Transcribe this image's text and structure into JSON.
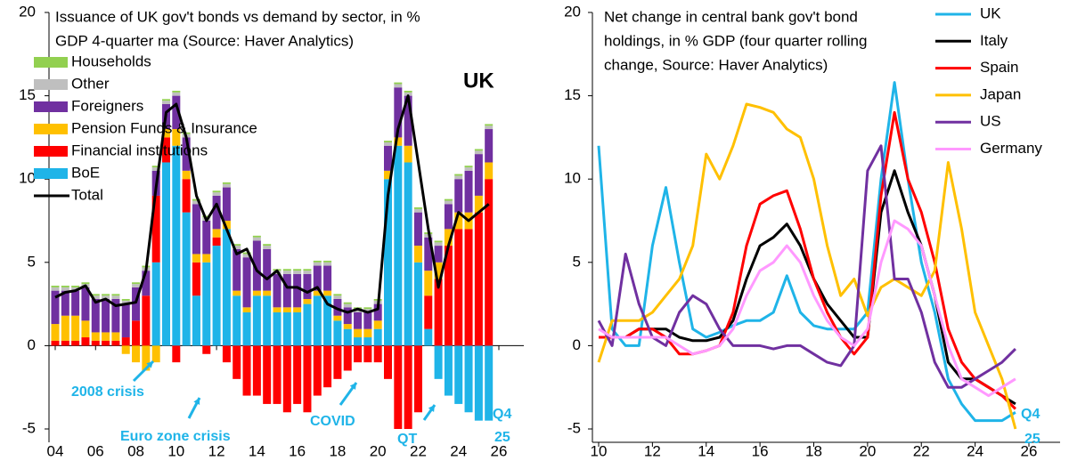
{
  "chart_data": [
    {
      "type": "bar",
      "stacked": true,
      "title": [
        "Issuance of UK gov't bonds vs demand by sector, in %",
        "GDP 4-quarter ma (Source: Haver Analytics)"
      ],
      "x": [
        2004,
        2004.5,
        2005,
        2005.5,
        2006,
        2006.5,
        2007,
        2007.5,
        2008,
        2008.5,
        2009,
        2009.5,
        2010,
        2010.5,
        2011,
        2011.5,
        2012,
        2012.5,
        2013,
        2013.5,
        2014,
        2014.5,
        2015,
        2015.5,
        2016,
        2016.5,
        2017,
        2017.5,
        2018,
        2018.5,
        2019,
        2019.5,
        2020,
        2020.5,
        2021,
        2021.5,
        2022,
        2022.5,
        2023,
        2023.5,
        2024,
        2024.5,
        2025,
        2025.5
      ],
      "series": [
        {
          "name": "Households",
          "color": "#92d050",
          "values": [
            0.1,
            0.1,
            0.1,
            0.1,
            0.1,
            0.1,
            0.1,
            0.1,
            0.1,
            0.1,
            0.1,
            0.1,
            0.1,
            0.1,
            0.1,
            0.1,
            0.1,
            0.1,
            0.1,
            0.1,
            0.1,
            0.1,
            0.1,
            0.1,
            0.1,
            0.1,
            0.1,
            0.1,
            0.1,
            0.1,
            0.1,
            0.1,
            0.1,
            0.1,
            0.1,
            0.1,
            0.1,
            0.1,
            0.1,
            0.1,
            0.1,
            0.1,
            0.1,
            0.1
          ]
        },
        {
          "name": "Other",
          "color": "#bfbfbf",
          "values": [
            0.2,
            0.2,
            0.2,
            0.2,
            0.2,
            0.2,
            0.2,
            0.2,
            0.2,
            0.2,
            0.2,
            0.2,
            0.2,
            0.2,
            0.2,
            0.2,
            0.2,
            0.2,
            0.2,
            0.2,
            0.2,
            0.2,
            0.2,
            0.2,
            0.2,
            0.2,
            0.2,
            0.2,
            0.2,
            0.2,
            0.2,
            0.2,
            0.2,
            0.2,
            0.2,
            0.2,
            0.2,
            0.2,
            0.2,
            0.2,
            0.2,
            0.2,
            0.2,
            0.2
          ]
        },
        {
          "name": "Foreigners",
          "color": "#7030a0",
          "values": [
            2,
            1.5,
            1.5,
            2,
            2,
            2,
            2,
            2,
            2,
            1.5,
            1.5,
            1.5,
            2,
            2,
            3,
            2,
            2,
            2,
            2.5,
            3,
            3,
            2.5,
            2,
            2,
            2,
            1.5,
            1.5,
            1.5,
            1,
            1,
            1,
            1,
            1,
            1.5,
            3,
            3,
            2,
            2,
            1,
            1.5,
            2,
            2.5,
            2.5,
            2
          ]
        },
        {
          "name": "Pension Funds & Insurance",
          "color": "#ffc000",
          "values": [
            1,
            1.5,
            1.5,
            1,
            0.5,
            0.5,
            0.5,
            -0.5,
            -1,
            -1.5,
            -1,
            0.5,
            1,
            0.5,
            0.5,
            0.5,
            0.5,
            0.5,
            0.3,
            0.3,
            0.3,
            0.3,
            0.3,
            0.3,
            0.3,
            0.3,
            0.3,
            0.3,
            0.3,
            0.3,
            0.5,
            0.5,
            0.5,
            0.5,
            0.5,
            1,
            1,
            1.5,
            1,
            1,
            1,
            1,
            1,
            1
          ]
        },
        {
          "name": "Financial institutions",
          "color": "#ff0000",
          "values": [
            0.3,
            0.3,
            0.3,
            0.5,
            0.3,
            0.3,
            0.3,
            0.5,
            1.5,
            3,
            4,
            1.5,
            -1,
            2,
            2,
            -0.5,
            0.5,
            -1,
            -2,
            -3,
            -3,
            -3.5,
            -3.5,
            -4,
            -3.5,
            -4,
            -3,
            -2.5,
            -2,
            -1.5,
            -1,
            -1,
            -1,
            -2,
            -5,
            -5,
            -4,
            2,
            4,
            6,
            7,
            7,
            8,
            10
          ]
        },
        {
          "name": "BoE",
          "color": "#1fb4e8",
          "values": [
            0,
            0,
            0,
            0,
            0,
            0,
            0,
            0,
            0,
            0,
            5,
            11,
            12,
            8,
            3,
            5,
            6,
            7,
            3,
            2,
            3,
            3,
            2,
            2,
            2,
            2.5,
            3,
            3,
            1.5,
            1,
            0.5,
            0.5,
            1,
            10,
            12,
            11,
            5,
            1,
            -2,
            -3,
            -3.5,
            -4,
            -4.5,
            -4.5
          ]
        },
        {
          "name": "Total",
          "color": "#000000",
          "type": "line",
          "values": [
            2.9,
            3.2,
            3.3,
            3.6,
            2.6,
            2.8,
            2.4,
            2.5,
            2.6,
            4.5,
            9.5,
            14,
            14.5,
            12.5,
            9,
            7.5,
            8.5,
            7,
            5.5,
            5.8,
            4.5,
            4,
            4.5,
            3.5,
            3.5,
            3.2,
            3.5,
            2.5,
            2.2,
            2,
            2.2,
            2,
            2.2,
            9,
            13,
            15,
            11,
            7,
            3.5,
            6,
            8,
            7.5,
            8,
            8.5
          ]
        }
      ],
      "xlim": [
        2004,
        2026
      ],
      "xticks": [
        {
          "value": 2004,
          "label": "04"
        },
        {
          "value": 2006,
          "label": "06"
        },
        {
          "value": 2008,
          "label": "08"
        },
        {
          "value": 2010,
          "label": "10"
        },
        {
          "value": 2012,
          "label": "12"
        },
        {
          "value": 2014,
          "label": "14"
        },
        {
          "value": 2016,
          "label": "16"
        },
        {
          "value": 2018,
          "label": "18"
        },
        {
          "value": 2020,
          "label": "20"
        },
        {
          "value": 2022,
          "label": "22"
        },
        {
          "value": 2024,
          "label": "24"
        },
        {
          "value": 2026,
          "label": "26"
        }
      ],
      "ylim": [
        -5,
        20
      ],
      "yticks": [
        -5,
        0,
        5,
        10,
        15,
        20
      ],
      "annotations": [
        "UK",
        "2008 crisis",
        "Euro zone crisis",
        "COVID",
        "QT",
        "Q4",
        "25"
      ]
    },
    {
      "type": "line",
      "title": [
        "Net change in central bank gov't bond",
        "holdings, in % GDP (four quarter rolling",
        "change, Source: Haver Analytics)"
      ],
      "x": [
        2010,
        2010.5,
        2011,
        2011.5,
        2012,
        2012.5,
        2013,
        2013.5,
        2014,
        2014.5,
        2015,
        2015.5,
        2016,
        2016.5,
        2017,
        2017.5,
        2018,
        2018.5,
        2019,
        2019.5,
        2020,
        2020.5,
        2021,
        2021.5,
        2022,
        2022.5,
        2023,
        2023.5,
        2024,
        2024.5,
        2025,
        2025.5
      ],
      "series": [
        {
          "name": "UK",
          "color": "#1fb4e8",
          "values": [
            12,
            1,
            0,
            0,
            6,
            9.5,
            5,
            1,
            0.5,
            0.8,
            1.2,
            1.5,
            1.5,
            2,
            4.2,
            2,
            1.2,
            1,
            1,
            1,
            2,
            10,
            15.8,
            10,
            5,
            2,
            -2,
            -3.5,
            -4.5,
            -4.5,
            -4.5,
            -4
          ]
        },
        {
          "name": "Italy",
          "color": "#000000",
          "values": [
            0.5,
            0.5,
            0.5,
            1,
            1,
            1,
            0.5,
            0.3,
            0.3,
            0.5,
            1.5,
            4,
            6,
            6.5,
            7.3,
            6,
            4,
            2.5,
            1.5,
            0.5,
            0.5,
            8,
            10.5,
            8,
            6,
            3,
            -1,
            -2,
            -2,
            -2.5,
            -3,
            -3.5
          ]
        },
        {
          "name": "Spain",
          "color": "#ff0000",
          "values": [
            0.5,
            0.5,
            0.5,
            1,
            1,
            0.5,
            -0.5,
            -0.5,
            -0.3,
            0,
            2,
            6,
            8.5,
            9,
            9.3,
            7,
            4,
            2,
            0.5,
            -0.5,
            0.5,
            9,
            14,
            10,
            8,
            5,
            1,
            -1,
            -2,
            -2.5,
            -3,
            -3.8
          ]
        },
        {
          "name": "Japan",
          "color": "#ffc000",
          "values": [
            -1,
            1.5,
            1.5,
            1.5,
            2,
            3,
            4,
            6,
            11.5,
            10,
            12,
            14.5,
            14.3,
            14,
            13,
            12.5,
            10,
            6,
            3,
            4,
            1.8,
            3.5,
            4,
            3.5,
            3,
            4.5,
            11,
            7,
            2,
            0,
            -2,
            -5
          ]
        },
        {
          "name": "US",
          "color": "#7030a0",
          "values": [
            1.5,
            0,
            5.5,
            2.5,
            0.5,
            0,
            2,
            3,
            2.5,
            1,
            0,
            0,
            0,
            -0.2,
            0,
            0,
            -0.5,
            -1,
            -1.2,
            0,
            10.5,
            12,
            4,
            4,
            2,
            -1,
            -2.5,
            -2.5,
            -2,
            -1.5,
            -1,
            -0.2
          ]
        },
        {
          "name": "Germany",
          "color": "#ff99ff",
          "values": [
            1,
            0.5,
            0.5,
            0.5,
            0.5,
            0.5,
            0,
            -0.5,
            -0.3,
            0,
            1,
            3,
            4.5,
            5,
            6,
            5,
            3,
            1.5,
            0.5,
            0,
            1,
            5,
            7.5,
            7,
            6,
            3,
            0,
            -2,
            -2.5,
            -3,
            -2.5,
            -2
          ]
        }
      ],
      "xlim": [
        2010,
        2026
      ],
      "xticks": [
        {
          "value": 2010,
          "label": "10"
        },
        {
          "value": 2012,
          "label": "12"
        },
        {
          "value": 2014,
          "label": "14"
        },
        {
          "value": 2016,
          "label": "16"
        },
        {
          "value": 2018,
          "label": "18"
        },
        {
          "value": 2020,
          "label": "20"
        },
        {
          "value": 2022,
          "label": "22"
        },
        {
          "value": 2024,
          "label": "24"
        },
        {
          "value": 2026,
          "label": "26"
        }
      ],
      "ylim": [
        -5,
        20
      ],
      "yticks": [
        -5,
        0,
        5,
        10,
        15,
        20
      ],
      "annotations": [
        "Q4",
        "25"
      ]
    }
  ]
}
